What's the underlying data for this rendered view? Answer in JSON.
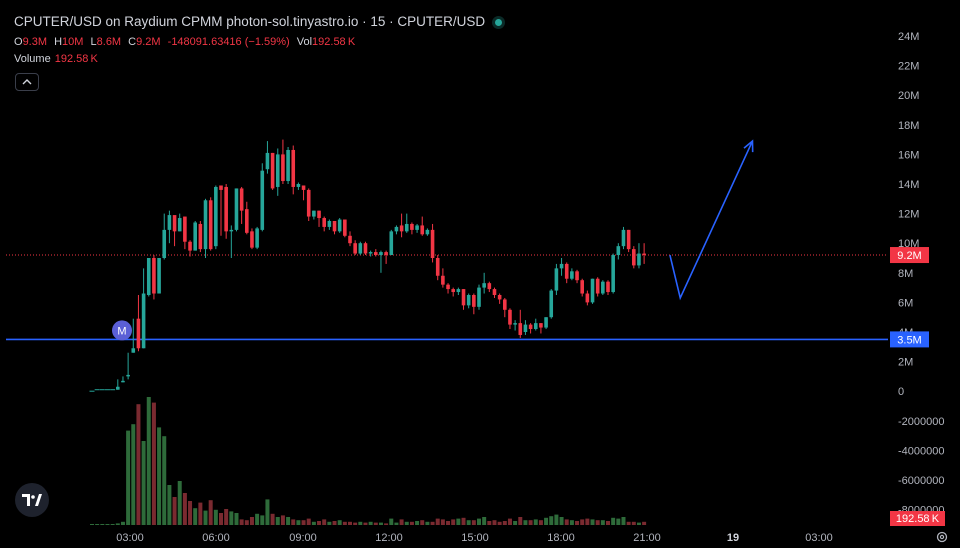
{
  "header": {
    "title": "CPUTER/USD on Raydium CPMM photon-sol.tinyastro.io · 15 · CPUTER/USD",
    "o_key": "O",
    "o_val": "9.3M",
    "h_key": "H",
    "h_val": "10M",
    "l_key": "L",
    "l_val": "8.6M",
    "c_key": "C",
    "c_val": "9.2M",
    "change": "-148091.63416 (−1.59%)",
    "vol_key": "Vol",
    "vol_val": "192.58 K"
  },
  "volume_legend": {
    "label": "Volume",
    "value": "192.58 K"
  },
  "icons": {
    "collapse": "chevron-up-icon",
    "logo": "tradingview-logo-icon",
    "settings": "gear-icon",
    "marker": "M"
  },
  "colors": {
    "up": "#26a69a",
    "down": "#f23645",
    "line": "#2962ff",
    "marker": "#5b5fd6",
    "bg": "#000000"
  },
  "chart_data": {
    "type": "candlestick",
    "y_ticks": [
      "24M",
      "22M",
      "20M",
      "18M",
      "16M",
      "14M",
      "12M",
      "10M",
      "8M",
      "6M",
      "4M",
      "2M",
      "0",
      "-2000000",
      "-4000000",
      "-6000000",
      "-8000000"
    ],
    "x_ticks": [
      "03:00",
      "06:00",
      "09:00",
      "12:00",
      "15:00",
      "18:00",
      "21:00",
      "19",
      "03:00"
    ],
    "ylim": [
      -8000000,
      24000000
    ],
    "price_label": "9.2M",
    "level_label": "3.5M",
    "level_value": 3500000,
    "volume_label": "192.58 K",
    "candles": [
      [
        0.0,
        0.0,
        0.0,
        0.1
      ],
      [
        0.1,
        0.1,
        0.1,
        0.1
      ],
      [
        0.1,
        0.1,
        0.1,
        0.1
      ],
      [
        0.1,
        0.1,
        0.1,
        0.1
      ],
      [
        0.1,
        0.1,
        0.1,
        0.1
      ],
      [
        0.1,
        0.3,
        0.1,
        0.8
      ],
      [
        0.6,
        0.7,
        0.6,
        1.0
      ],
      [
        1.0,
        1.1,
        0.8,
        2.6
      ],
      [
        2.6,
        2.9,
        2.6,
        4.9
      ],
      [
        4.9,
        2.9,
        2.7,
        6.5
      ],
      [
        2.9,
        6.6,
        2.9,
        8.3
      ],
      [
        6.5,
        9.0,
        6.4,
        9.0
      ],
      [
        9.0,
        6.6,
        6.2,
        9.2
      ],
      [
        6.6,
        9.0,
        6.6,
        9.0
      ],
      [
        9.0,
        10.9,
        8.9,
        12.0
      ],
      [
        10.9,
        11.9,
        10.0,
        12.2
      ],
      [
        11.9,
        10.8,
        9.8,
        11.8
      ],
      [
        10.8,
        11.7,
        10.8,
        12.0
      ],
      [
        11.8,
        10.1,
        9.6,
        11.8
      ],
      [
        10.1,
        9.5,
        9.1,
        10.2
      ],
      [
        9.5,
        11.4,
        9.5,
        11.5
      ],
      [
        11.3,
        9.6,
        9.4,
        11.5
      ],
      [
        9.6,
        12.9,
        9.0,
        13.0
      ],
      [
        12.9,
        9.6,
        9.5,
        13.1
      ],
      [
        9.8,
        13.8,
        9.6,
        13.9
      ],
      [
        13.9,
        13.6,
        10.5,
        13.9
      ],
      [
        13.8,
        10.8,
        10.3,
        14.0
      ],
      [
        10.8,
        10.9,
        9.0,
        11.2
      ],
      [
        10.9,
        13.7,
        10.8,
        13.7
      ],
      [
        13.7,
        12.2,
        11.3,
        13.8
      ],
      [
        12.3,
        10.7,
        10.6,
        12.8
      ],
      [
        10.8,
        9.7,
        9.6,
        11.0
      ],
      [
        9.7,
        11.0,
        9.6,
        11.1
      ],
      [
        10.9,
        14.9,
        10.8,
        15.4
      ],
      [
        15.0,
        16.1,
        14.7,
        16.9
      ],
      [
        16.1,
        13.7,
        13.6,
        16.1
      ],
      [
        13.8,
        16.0,
        13.2,
        16.4
      ],
      [
        16.0,
        14.2,
        14.0,
        17.0
      ],
      [
        14.2,
        16.3,
        14.0,
        16.5
      ],
      [
        16.3,
        13.8,
        13.3,
        16.6
      ],
      [
        13.8,
        14.0,
        13.6,
        14.1
      ],
      [
        13.9,
        13.6,
        12.9,
        13.9
      ],
      [
        13.6,
        11.8,
        11.5,
        13.7
      ],
      [
        11.8,
        12.2,
        11.6,
        12.2
      ],
      [
        12.2,
        11.7,
        11.1,
        12.2
      ],
      [
        11.7,
        11.1,
        10.8,
        11.8
      ],
      [
        11.1,
        11.5,
        10.9,
        11.6
      ],
      [
        11.5,
        10.8,
        10.6,
        11.5
      ],
      [
        10.8,
        11.6,
        10.7,
        11.7
      ],
      [
        11.6,
        10.5,
        10.4,
        11.6
      ],
      [
        10.5,
        10.0,
        9.8,
        10.8
      ],
      [
        10.0,
        9.3,
        9.2,
        10.2
      ],
      [
        9.3,
        10.0,
        9.2,
        10.1
      ],
      [
        10.0,
        9.3,
        9.2,
        10.1
      ],
      [
        9.3,
        9.4,
        9.1,
        9.5
      ],
      [
        9.4,
        9.2,
        9.1,
        9.6
      ],
      [
        9.2,
        9.4,
        8.0,
        9.5
      ],
      [
        9.4,
        9.2,
        8.6,
        9.5
      ],
      [
        9.2,
        10.8,
        9.2,
        10.9
      ],
      [
        10.8,
        11.1,
        10.6,
        11.2
      ],
      [
        11.2,
        10.8,
        10.4,
        12.0
      ],
      [
        10.8,
        11.3,
        10.7,
        12.0
      ],
      [
        11.3,
        10.9,
        10.6,
        11.4
      ],
      [
        10.9,
        11.2,
        10.7,
        11.3
      ],
      [
        11.2,
        10.6,
        10.5,
        11.8
      ],
      [
        10.6,
        10.9,
        10.5,
        11.0
      ],
      [
        10.9,
        9.0,
        8.7,
        11.3
      ],
      [
        9.0,
        7.8,
        7.5,
        9.2
      ],
      [
        7.8,
        7.2,
        7.0,
        8.3
      ],
      [
        7.2,
        6.9,
        6.6,
        7.3
      ],
      [
        6.9,
        6.7,
        6.4,
        7.0
      ],
      [
        6.7,
        6.9,
        6.5,
        7.0
      ],
      [
        6.9,
        5.8,
        5.5,
        6.9
      ],
      [
        5.8,
        6.5,
        5.6,
        6.6
      ],
      [
        6.5,
        5.7,
        5.2,
        6.6
      ],
      [
        5.7,
        7.0,
        5.5,
        7.2
      ],
      [
        7.0,
        7.3,
        6.6,
        8.0
      ],
      [
        7.3,
        6.9,
        6.7,
        7.4
      ],
      [
        6.9,
        6.5,
        6.3,
        7.0
      ],
      [
        6.5,
        6.2,
        5.9,
        6.6
      ],
      [
        6.2,
        5.5,
        5.0,
        6.3
      ],
      [
        5.5,
        4.5,
        4.2,
        5.6
      ],
      [
        4.5,
        4.6,
        4.1,
        4.8
      ],
      [
        4.6,
        3.8,
        3.6,
        5.5
      ],
      [
        4.0,
        4.5,
        3.8,
        4.8
      ],
      [
        4.5,
        4.2,
        3.9,
        4.6
      ],
      [
        4.2,
        4.6,
        4.1,
        4.9
      ],
      [
        4.6,
        4.3,
        3.9,
        4.6
      ],
      [
        4.3,
        5.0,
        4.2,
        5.0
      ],
      [
        5.0,
        6.8,
        4.9,
        6.9
      ],
      [
        6.8,
        8.3,
        6.5,
        8.6
      ],
      [
        8.3,
        8.6,
        7.8,
        9.0
      ],
      [
        8.6,
        7.6,
        7.3,
        8.7
      ],
      [
        7.6,
        8.1,
        7.5,
        8.3
      ],
      [
        8.1,
        7.5,
        7.3,
        8.2
      ],
      [
        7.5,
        6.6,
        6.4,
        7.6
      ],
      [
        6.6,
        6.0,
        5.8,
        6.8
      ],
      [
        6.0,
        7.6,
        5.9,
        7.6
      ],
      [
        7.6,
        6.6,
        6.4,
        7.7
      ],
      [
        6.6,
        7.4,
        6.5,
        7.5
      ],
      [
        7.4,
        6.7,
        6.5,
        7.5
      ],
      [
        6.7,
        9.2,
        6.6,
        9.3
      ],
      [
        9.2,
        9.8,
        8.9,
        10.0
      ],
      [
        9.8,
        10.9,
        9.6,
        11.1
      ],
      [
        10.9,
        9.6,
        9.4,
        10.9
      ],
      [
        9.6,
        8.5,
        8.3,
        9.8
      ],
      [
        8.5,
        9.3,
        8.3,
        10.0
      ],
      [
        9.3,
        9.2,
        8.6,
        10.0
      ]
    ],
    "volumes": [
      [
        0.1,
        1
      ],
      [
        0.1,
        1
      ],
      [
        0.1,
        1
      ],
      [
        0.1,
        1
      ],
      [
        0.1,
        1
      ],
      [
        0.2,
        1
      ],
      [
        0.4,
        1
      ],
      [
        11.8,
        1
      ],
      [
        12.6,
        1
      ],
      [
        15.1,
        0
      ],
      [
        10.5,
        1
      ],
      [
        16.0,
        1
      ],
      [
        15.3,
        0
      ],
      [
        12.2,
        1
      ],
      [
        11.1,
        1
      ],
      [
        5.0,
        1
      ],
      [
        3.5,
        0
      ],
      [
        5.5,
        1
      ],
      [
        4.0,
        0
      ],
      [
        3.0,
        0
      ],
      [
        2.1,
        1
      ],
      [
        2.8,
        0
      ],
      [
        1.8,
        1
      ],
      [
        3.1,
        0
      ],
      [
        1.9,
        1
      ],
      [
        1.5,
        0
      ],
      [
        2.0,
        0
      ],
      [
        1.7,
        1
      ],
      [
        1.5,
        1
      ],
      [
        0.7,
        0
      ],
      [
        0.6,
        0
      ],
      [
        1.0,
        0
      ],
      [
        1.4,
        1
      ],
      [
        1.2,
        1
      ],
      [
        3.2,
        1
      ],
      [
        1.4,
        0
      ],
      [
        1.0,
        1
      ],
      [
        1.2,
        0
      ],
      [
        1.0,
        1
      ],
      [
        0.7,
        0
      ],
      [
        0.6,
        1
      ],
      [
        0.6,
        0
      ],
      [
        0.8,
        0
      ],
      [
        0.4,
        1
      ],
      [
        0.5,
        0
      ],
      [
        0.7,
        0
      ],
      [
        0.4,
        1
      ],
      [
        0.5,
        0
      ],
      [
        0.6,
        1
      ],
      [
        0.4,
        0
      ],
      [
        0.4,
        0
      ],
      [
        0.3,
        0
      ],
      [
        0.4,
        1
      ],
      [
        0.3,
        0
      ],
      [
        0.4,
        1
      ],
      [
        0.3,
        0
      ],
      [
        0.3,
        1
      ],
      [
        0.2,
        0
      ],
      [
        0.8,
        1
      ],
      [
        0.3,
        1
      ],
      [
        0.7,
        0
      ],
      [
        0.4,
        1
      ],
      [
        0.4,
        0
      ],
      [
        0.5,
        1
      ],
      [
        0.6,
        0
      ],
      [
        0.4,
        1
      ],
      [
        0.4,
        0
      ],
      [
        0.8,
        0
      ],
      [
        0.7,
        0
      ],
      [
        0.5,
        0
      ],
      [
        0.7,
        0
      ],
      [
        0.8,
        1
      ],
      [
        0.9,
        0
      ],
      [
        0.6,
        1
      ],
      [
        0.6,
        0
      ],
      [
        0.8,
        1
      ],
      [
        1.0,
        1
      ],
      [
        0.5,
        0
      ],
      [
        0.6,
        0
      ],
      [
        0.4,
        0
      ],
      [
        0.5,
        0
      ],
      [
        0.8,
        0
      ],
      [
        0.5,
        1
      ],
      [
        1.0,
        0
      ],
      [
        0.6,
        1
      ],
      [
        0.6,
        0
      ],
      [
        0.7,
        1
      ],
      [
        0.6,
        0
      ],
      [
        0.9,
        1
      ],
      [
        1.1,
        1
      ],
      [
        1.3,
        1
      ],
      [
        1.0,
        1
      ],
      [
        0.7,
        0
      ],
      [
        0.6,
        1
      ],
      [
        0.5,
        0
      ],
      [
        0.7,
        0
      ],
      [
        0.8,
        0
      ],
      [
        0.7,
        1
      ],
      [
        0.6,
        0
      ],
      [
        0.6,
        1
      ],
      [
        0.5,
        0
      ],
      [
        0.9,
        1
      ],
      [
        0.8,
        1
      ],
      [
        1.0,
        1
      ],
      [
        0.4,
        0
      ],
      [
        0.4,
        0
      ],
      [
        0.3,
        1
      ],
      [
        0.4,
        0
      ]
    ],
    "projection": [
      {
        "bar": 112,
        "price": 9.2
      },
      {
        "bar": 114,
        "price": 6.3
      },
      {
        "bar": 128,
        "price": 16.9
      }
    ],
    "marker_bar": 8
  }
}
